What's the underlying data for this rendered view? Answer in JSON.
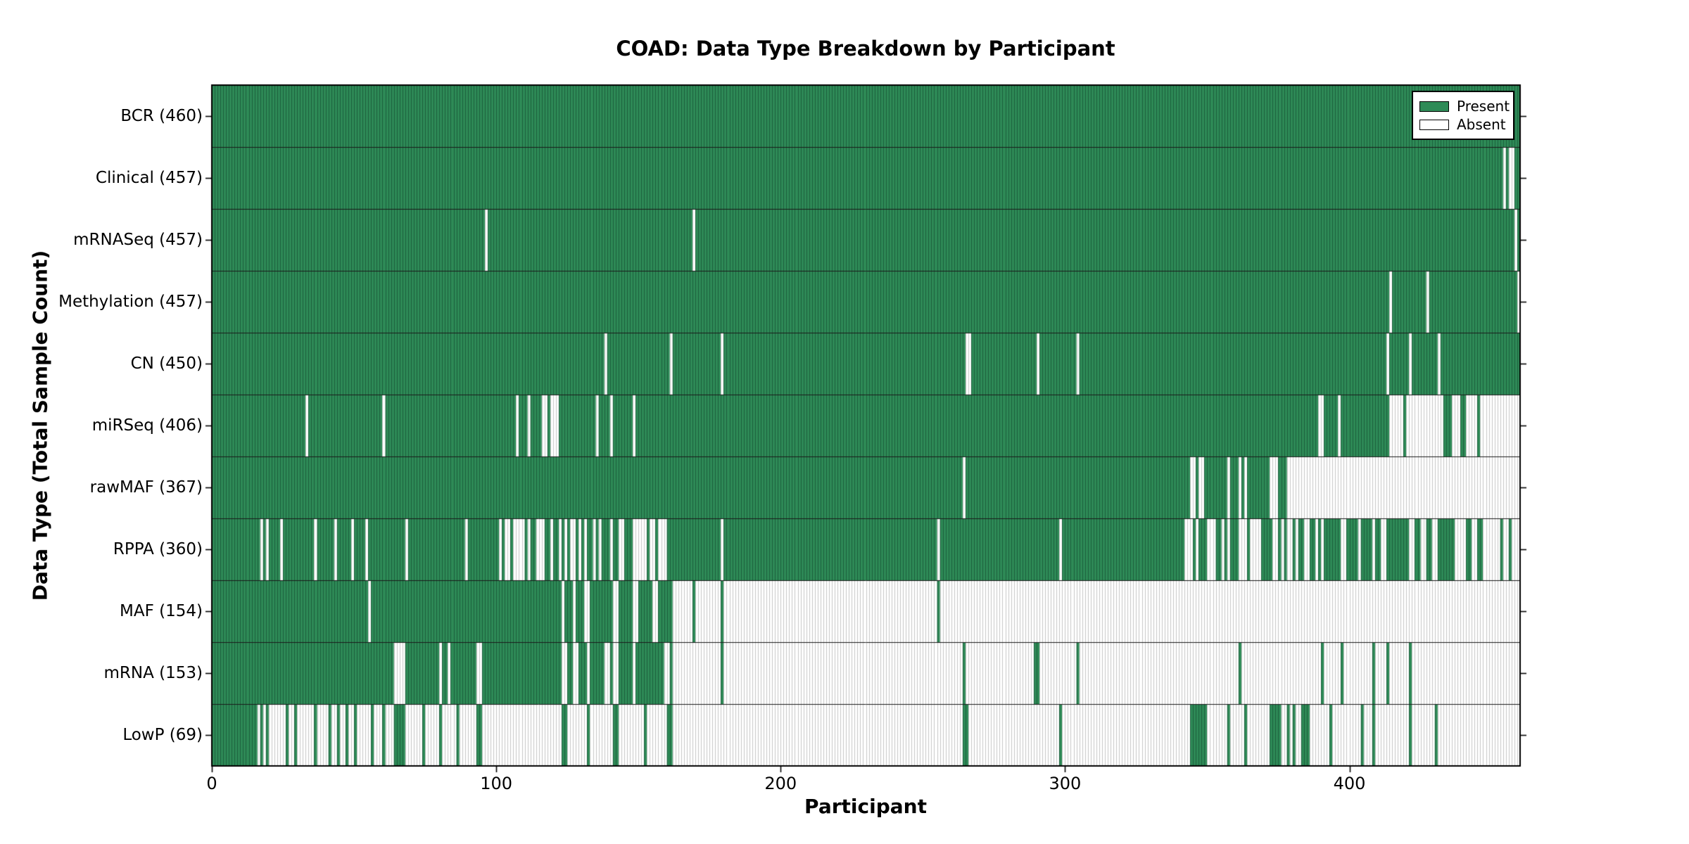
{
  "chart_data": {
    "type": "heatmap",
    "title": "COAD: Data Type Breakdown by Participant",
    "xlabel": "Participant",
    "ylabel": "Data Type (Total Sample Count)",
    "x_ticks": [
      0,
      100,
      200,
      300,
      400
    ],
    "n_participants": 460,
    "grid": "row separators only",
    "legend_position": "upper right, inside axes",
    "legend": [
      {
        "label": "Present",
        "color": "#2e8b57"
      },
      {
        "label": "Absent",
        "color": "#ffffff"
      }
    ],
    "colors": {
      "present": "#2e8b57",
      "present_edge": "#1c5e3c",
      "absent": "#ffffff",
      "absent_edge": "#c6c6c6",
      "row_separator": "#1a1a1a",
      "spine": "#000000"
    },
    "rows": [
      {
        "label": "BCR (460)",
        "name": "BCR",
        "total": 460,
        "mode": "absent",
        "ranges": []
      },
      {
        "label": "Clinical (457)",
        "name": "Clinical",
        "total": 457,
        "mode": "absent",
        "ranges": [
          [
            454,
            454
          ],
          [
            456,
            457
          ]
        ]
      },
      {
        "label": "mRNASeq (457)",
        "name": "mRNASeq",
        "total": 457,
        "mode": "absent",
        "ranges": [
          [
            96,
            96
          ],
          [
            169,
            169
          ],
          [
            458,
            458
          ]
        ]
      },
      {
        "label": "Methylation (457)",
        "name": "Methylation",
        "total": 457,
        "mode": "absent",
        "ranges": [
          [
            414,
            414
          ],
          [
            427,
            427
          ],
          [
            459,
            459
          ]
        ]
      },
      {
        "label": "CN (450)",
        "name": "CN",
        "total": 450,
        "mode": "absent",
        "ranges": [
          [
            138,
            138
          ],
          [
            161,
            161
          ],
          [
            179,
            179
          ],
          [
            265,
            266
          ],
          [
            290,
            290
          ],
          [
            304,
            304
          ],
          [
            413,
            413
          ],
          [
            421,
            421
          ],
          [
            431,
            431
          ]
        ]
      },
      {
        "label": "miRSeq (406)",
        "name": "miRSeq",
        "total": 406,
        "mode": "absent",
        "ranges": [
          [
            33,
            33
          ],
          [
            60,
            60
          ],
          [
            107,
            107
          ],
          [
            111,
            111
          ],
          [
            116,
            117
          ],
          [
            119,
            121
          ],
          [
            135,
            135
          ],
          [
            140,
            140
          ],
          [
            148,
            148
          ],
          [
            389,
            390
          ],
          [
            396,
            396
          ],
          [
            414,
            418
          ],
          [
            420,
            432
          ],
          [
            436,
            438
          ],
          [
            441,
            444
          ],
          [
            446,
            459
          ]
        ]
      },
      {
        "label": "rawMAF (367)",
        "name": "rawMAF",
        "total": 367,
        "mode": "absent",
        "ranges": [
          [
            264,
            264
          ],
          [
            344,
            345
          ],
          [
            347,
            348
          ],
          [
            357,
            357
          ],
          [
            361,
            361
          ],
          [
            363,
            363
          ],
          [
            372,
            374
          ],
          [
            378,
            459
          ]
        ]
      },
      {
        "label": "RPPA (360)",
        "name": "RPPA",
        "total": 360,
        "mode": "absent",
        "ranges": [
          [
            17,
            17
          ],
          [
            19,
            19
          ],
          [
            24,
            24
          ],
          [
            36,
            36
          ],
          [
            43,
            43
          ],
          [
            49,
            49
          ],
          [
            54,
            54
          ],
          [
            68,
            68
          ],
          [
            89,
            89
          ],
          [
            101,
            101
          ],
          [
            103,
            104
          ],
          [
            106,
            109
          ],
          [
            111,
            111
          ],
          [
            114,
            116
          ],
          [
            119,
            119
          ],
          [
            122,
            122
          ],
          [
            124,
            124
          ],
          [
            126,
            127
          ],
          [
            129,
            129
          ],
          [
            131,
            131
          ],
          [
            134,
            134
          ],
          [
            136,
            136
          ],
          [
            140,
            140
          ],
          [
            143,
            144
          ],
          [
            148,
            152
          ],
          [
            154,
            155
          ],
          [
            157,
            159
          ],
          [
            179,
            179
          ],
          [
            255,
            255
          ],
          [
            298,
            298
          ],
          [
            342,
            344
          ],
          [
            346,
            346
          ],
          [
            350,
            352
          ],
          [
            355,
            355
          ],
          [
            357,
            357
          ],
          [
            361,
            363
          ],
          [
            365,
            368
          ],
          [
            373,
            374
          ],
          [
            376,
            376
          ],
          [
            378,
            379
          ],
          [
            381,
            381
          ],
          [
            384,
            385
          ],
          [
            388,
            388
          ],
          [
            390,
            390
          ],
          [
            397,
            398
          ],
          [
            403,
            403
          ],
          [
            408,
            408
          ],
          [
            411,
            412
          ],
          [
            421,
            422
          ],
          [
            425,
            426
          ],
          [
            429,
            430
          ],
          [
            437,
            440
          ],
          [
            443,
            444
          ],
          [
            447,
            452
          ],
          [
            454,
            455
          ],
          [
            457,
            459
          ]
        ]
      },
      {
        "label": "MAF (154)",
        "name": "MAF",
        "total": 154,
        "mode": "absent",
        "ranges": [
          [
            55,
            55
          ],
          [
            123,
            123
          ],
          [
            127,
            127
          ],
          [
            131,
            132
          ],
          [
            141,
            142
          ],
          [
            148,
            149
          ],
          [
            155,
            156
          ],
          [
            162,
            168
          ],
          [
            170,
            178
          ],
          [
            180,
            254
          ],
          [
            256,
            459
          ]
        ]
      },
      {
        "label": "mRNA (153)",
        "name": "mRNA",
        "total": 153,
        "mode": "present",
        "ranges": [
          [
            0,
            63
          ],
          [
            68,
            79
          ],
          [
            81,
            82
          ],
          [
            84,
            92
          ],
          [
            95,
            122
          ],
          [
            125,
            126
          ],
          [
            129,
            131
          ],
          [
            133,
            137
          ],
          [
            140,
            140
          ],
          [
            143,
            147
          ],
          [
            149,
            158
          ],
          [
            161,
            161
          ],
          [
            179,
            179
          ],
          [
            264,
            264
          ],
          [
            289,
            290
          ],
          [
            304,
            304
          ],
          [
            361,
            361
          ],
          [
            390,
            390
          ],
          [
            397,
            397
          ],
          [
            408,
            408
          ],
          [
            413,
            413
          ],
          [
            421,
            421
          ]
        ]
      },
      {
        "label": "LowP (69)",
        "name": "LowP",
        "total": 69,
        "mode": "present",
        "ranges": [
          [
            0,
            15
          ],
          [
            17,
            17
          ],
          [
            19,
            19
          ],
          [
            26,
            26
          ],
          [
            29,
            29
          ],
          [
            36,
            36
          ],
          [
            41,
            41
          ],
          [
            44,
            44
          ],
          [
            47,
            47
          ],
          [
            50,
            50
          ],
          [
            56,
            56
          ],
          [
            60,
            60
          ],
          [
            64,
            67
          ],
          [
            74,
            74
          ],
          [
            80,
            80
          ],
          [
            86,
            86
          ],
          [
            93,
            94
          ],
          [
            123,
            124
          ],
          [
            132,
            132
          ],
          [
            141,
            142
          ],
          [
            152,
            152
          ],
          [
            160,
            161
          ],
          [
            264,
            265
          ],
          [
            298,
            298
          ],
          [
            344,
            349
          ],
          [
            357,
            357
          ],
          [
            363,
            363
          ],
          [
            372,
            375
          ],
          [
            378,
            378
          ],
          [
            380,
            380
          ],
          [
            383,
            385
          ],
          [
            393,
            393
          ],
          [
            404,
            404
          ],
          [
            408,
            408
          ],
          [
            421,
            421
          ],
          [
            430,
            430
          ]
        ]
      }
    ]
  }
}
